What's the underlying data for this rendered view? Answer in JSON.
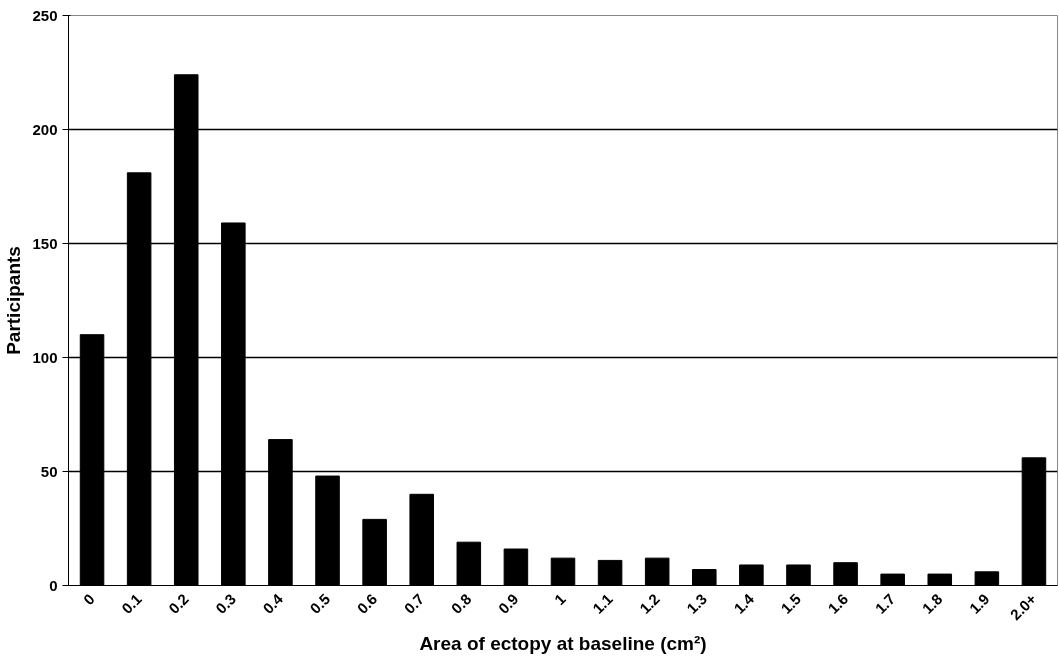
{
  "chart_data": {
    "type": "bar",
    "xlabel": "Area of ectopy at baseline (cm²)",
    "ylabel": "Participants",
    "categories": [
      "0",
      "0.1",
      "0.2",
      "0.3",
      "0.4",
      "0.5",
      "0.6",
      "0.7",
      "0.8",
      "0.9",
      "1",
      "1.1",
      "1.2",
      "1.3",
      "1.4",
      "1.5",
      "1.6",
      "1.7",
      "1.8",
      "1.9",
      "2.0+"
    ],
    "values": [
      110,
      181,
      224,
      159,
      64,
      48,
      29,
      40,
      19,
      16,
      12,
      11,
      12,
      7,
      9,
      9,
      10,
      5,
      5,
      6,
      56
    ],
    "color": "#000000",
    "ylim": [
      0,
      250
    ],
    "yticks": [
      0,
      50,
      100,
      150,
      200,
      250
    ],
    "grid": "y"
  }
}
